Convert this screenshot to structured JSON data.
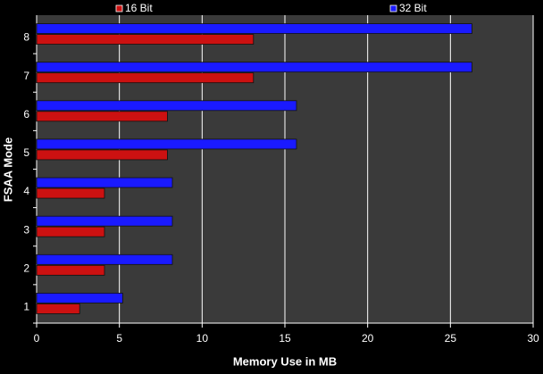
{
  "chart_data": {
    "type": "barh",
    "categories": [
      "1",
      "2",
      "3",
      "4",
      "5",
      "6",
      "7",
      "8"
    ],
    "series": [
      {
        "name": "16 Bit",
        "color": "#cc1111",
        "values": [
          2.6,
          4.1,
          4.1,
          4.1,
          7.9,
          7.9,
          13.1,
          13.1
        ]
      },
      {
        "name": "32 Bit",
        "color": "#1a1aff",
        "values": [
          5.2,
          8.2,
          8.2,
          8.2,
          15.7,
          15.7,
          26.3,
          26.3
        ]
      }
    ],
    "xlabel": "Memory Use in MB",
    "ylabel": "FSAA Mode",
    "xlim": [
      0,
      30
    ],
    "xticks": [
      0,
      5,
      10,
      15,
      20,
      25,
      30
    ],
    "grid": true,
    "legend": "top"
  }
}
